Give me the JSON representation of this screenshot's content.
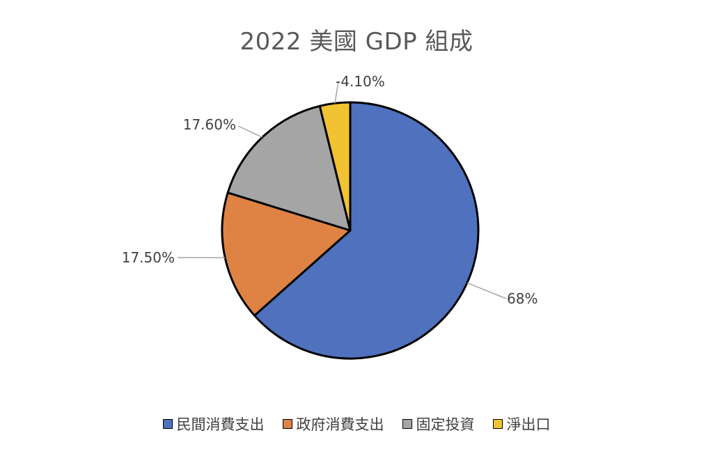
{
  "chart_data": {
    "type": "pie",
    "title": "2022 美國 GDP 組成",
    "categories": [
      "民間消費支出",
      "政府消費支出",
      "固定投資",
      "淨出口"
    ],
    "values": [
      68,
      17.5,
      17.6,
      -4.1
    ],
    "data_labels": [
      "68%",
      "17.50%",
      "17.60%",
      "-4.10%"
    ],
    "colors": [
      "#4F71BE",
      "#DE8344",
      "#A5A5A5",
      "#F1C232"
    ],
    "legend_position": "bottom"
  }
}
